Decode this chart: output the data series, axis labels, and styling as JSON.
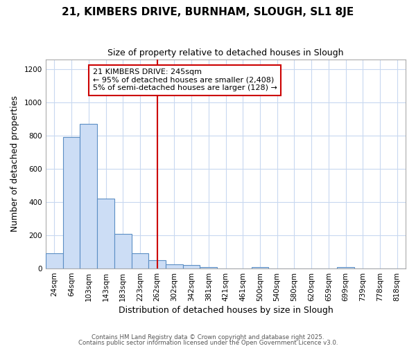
{
  "title1": "21, KIMBERS DRIVE, BURNHAM, SLOUGH, SL1 8JE",
  "title2": "Size of property relative to detached houses in Slough",
  "xlabel": "Distribution of detached houses by size in Slough",
  "ylabel": "Number of detached properties",
  "categories": [
    "24sqm",
    "64sqm",
    "103sqm",
    "143sqm",
    "183sqm",
    "223sqm",
    "262sqm",
    "302sqm",
    "342sqm",
    "381sqm",
    "421sqm",
    "461sqm",
    "500sqm",
    "540sqm",
    "580sqm",
    "620sqm",
    "659sqm",
    "699sqm",
    "739sqm",
    "778sqm",
    "818sqm"
  ],
  "values": [
    90,
    790,
    870,
    420,
    210,
    90,
    50,
    25,
    20,
    10,
    0,
    0,
    10,
    0,
    0,
    0,
    0,
    10,
    0,
    0,
    0
  ],
  "bar_color": "#ccddf5",
  "bar_edge_color": "#5b8ec4",
  "vline_x": 6.0,
  "vline_color": "#cc0000",
  "annotation_title": "21 KIMBERS DRIVE: 245sqm",
  "annotation_line1": "← 95% of detached houses are smaller (2,408)",
  "annotation_line2": "5% of semi-detached houses are larger (128) →",
  "annotation_box_color": "#ffffff",
  "annotation_box_edge": "#cc0000",
  "ylim": [
    0,
    1260
  ],
  "yticks": [
    0,
    200,
    400,
    600,
    800,
    1000,
    1200
  ],
  "footer1": "Contains HM Land Registry data © Crown copyright and database right 2025.",
  "footer2": "Contains public sector information licensed under the Open Government Licence v3.0.",
  "bg_color": "#ffffff",
  "grid_color": "#c8d8f0"
}
